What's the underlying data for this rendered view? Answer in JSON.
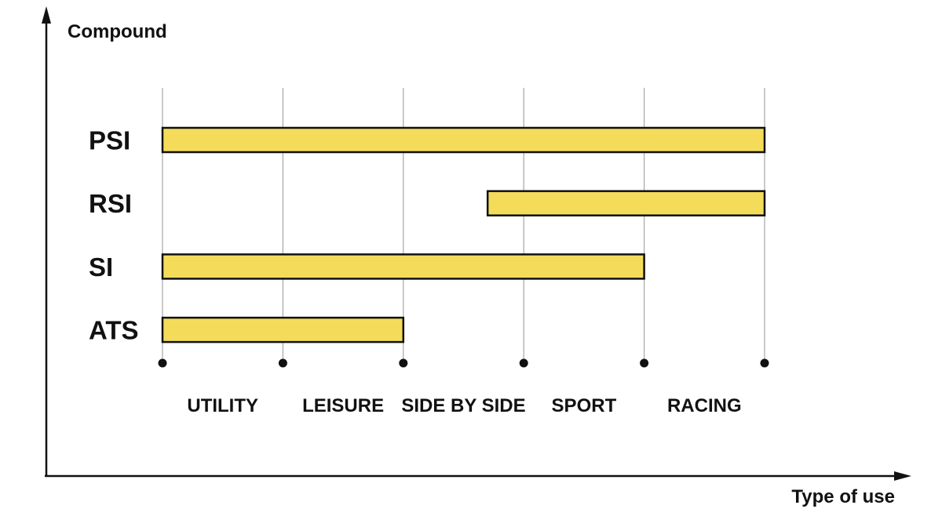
{
  "chart_data": {
    "type": "bar",
    "orientation": "horizontal-range",
    "ylabel": "Compound",
    "xlabel": "Type of use",
    "categories": [
      "UTILITY",
      "LEISURE",
      "SIDE BY SIDE",
      "SPORT",
      "RACING"
    ],
    "bars": [
      {
        "label": "PSI",
        "start": 0,
        "end": 5
      },
      {
        "label": "RSI",
        "start": 2.7,
        "end": 5
      },
      {
        "label": "SI",
        "start": 0,
        "end": 4
      },
      {
        "label": "ATS",
        "start": 0,
        "end": 2
      }
    ],
    "xlim": [
      0,
      5
    ],
    "grid": true,
    "colors": {
      "bar_fill": "#f4dc5a",
      "bar_stroke": "#111111",
      "grid": "#a6a6a6",
      "axis": "#111111"
    }
  }
}
